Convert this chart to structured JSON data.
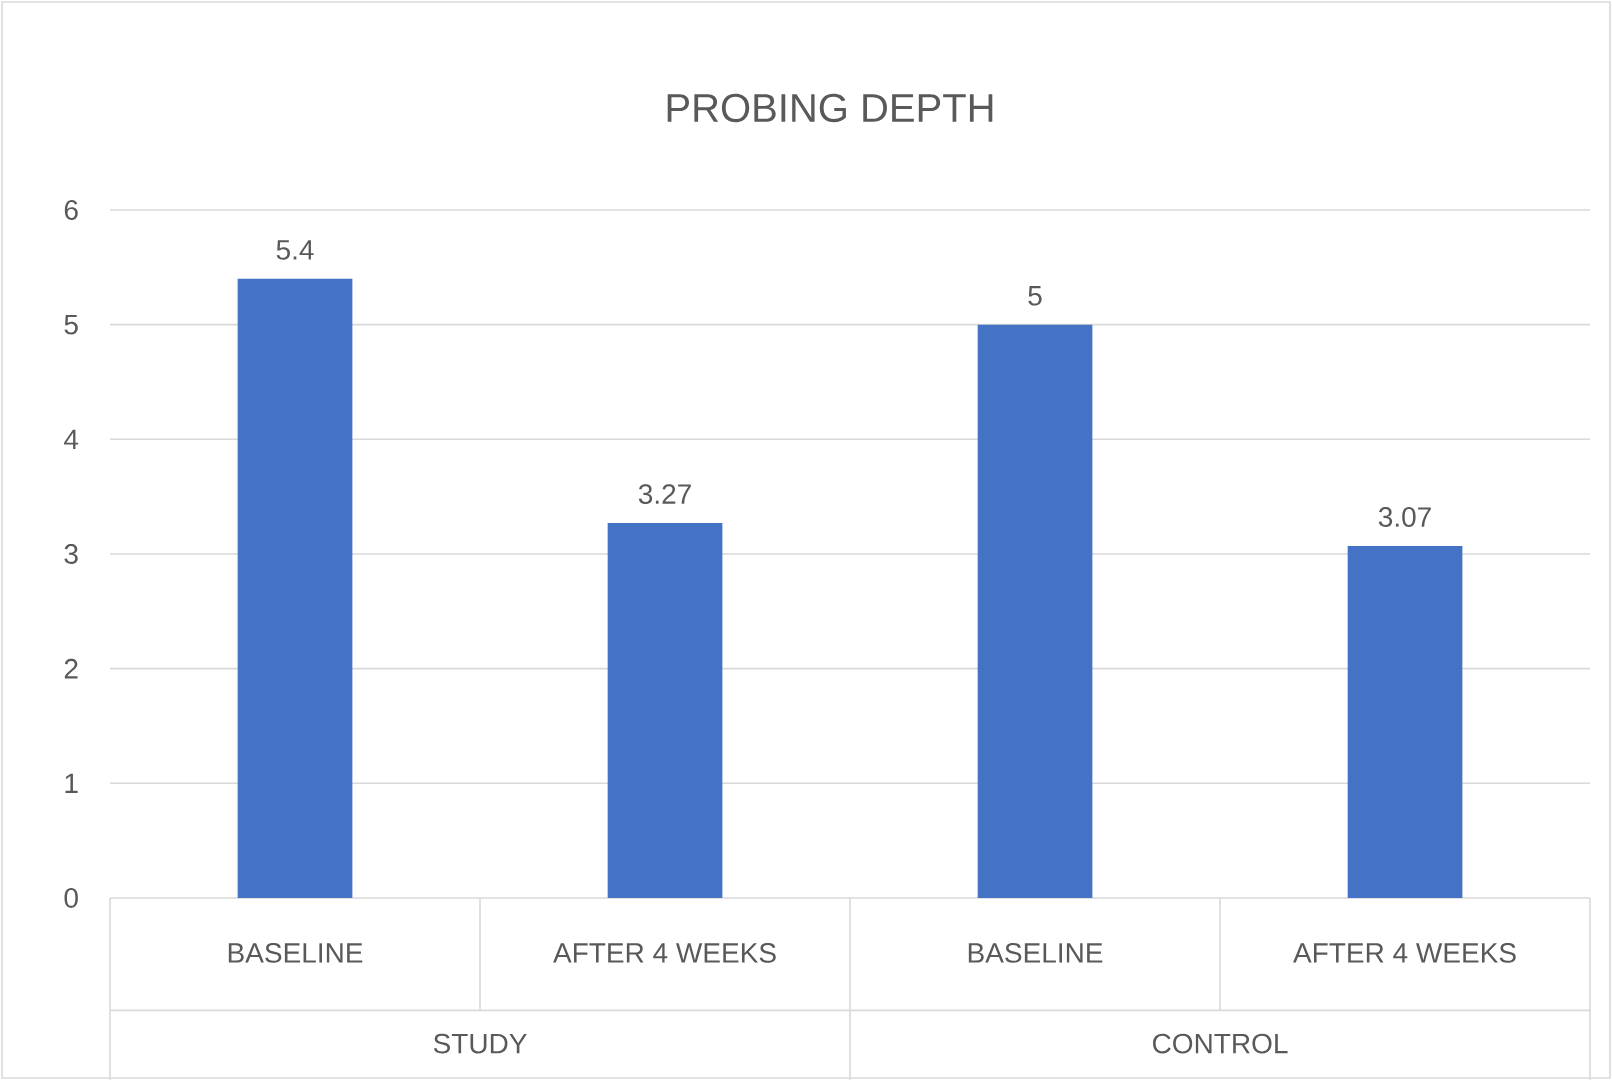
{
  "chart_data": {
    "type": "bar",
    "title": "PROBING DEPTH",
    "categories": [
      "BASELINE",
      "AFTER 4 WEEKS",
      "BASELINE",
      "AFTER 4 WEEKS"
    ],
    "values": [
      5.4,
      3.27,
      5,
      3.07
    ],
    "color": "#4472c4",
    "ylim": [
      0,
      6
    ],
    "yticks": [
      0,
      1,
      2,
      3,
      4,
      5,
      6
    ],
    "grid": "y",
    "data_labels": true,
    "annotations": [
      "STUDY",
      "CONTROL"
    ]
  }
}
